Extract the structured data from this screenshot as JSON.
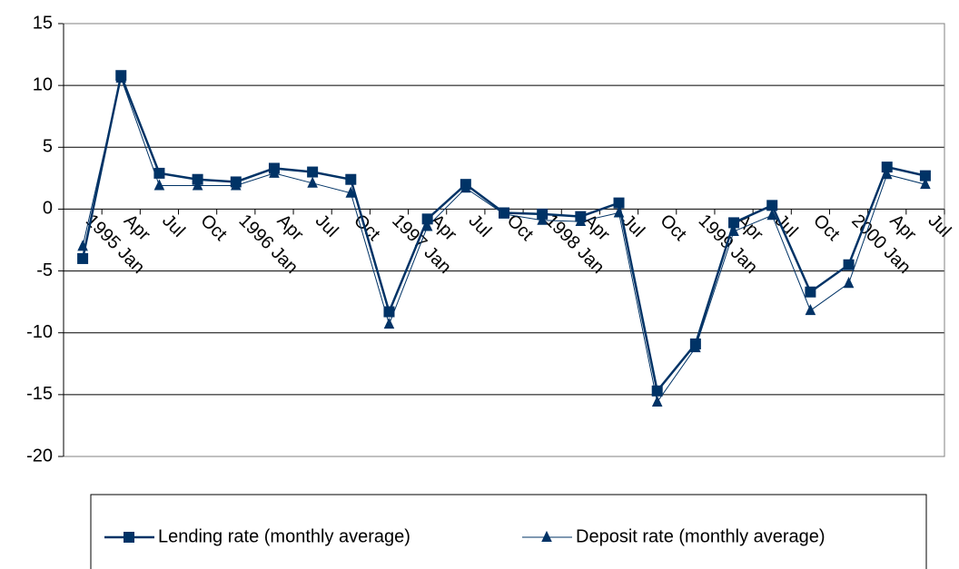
{
  "chart_data": {
    "type": "line",
    "categories": [
      "1995 Jan",
      "Apr",
      "Jul",
      "Oct",
      "1996 Jan",
      "Apr",
      "Jul",
      "Oct",
      "1997 Jan",
      "Apr",
      "Jul",
      "Oct",
      "1998 Jan",
      "Apr",
      "Jul",
      "Oct",
      "1999 Jan",
      "Apr",
      "Jul",
      "Oct",
      "2000 Jan",
      "Apr",
      "Jul"
    ],
    "series": [
      {
        "name": "Lending rate (monthly average)",
        "color": "#003366",
        "marker": "square",
        "values": [
          -4,
          10.8,
          2.9,
          2.4,
          2.2,
          3.3,
          3.0,
          2.4,
          -8.3,
          -0.8,
          2.0,
          -0.3,
          -0.4,
          -0.6,
          0.5,
          -14.7,
          -10.9,
          -1.1,
          0.3,
          -6.7,
          -4.5,
          3.4,
          2.7
        ]
      },
      {
        "name": "Deposit rate (monthly average)",
        "color": "#003366",
        "marker": "triangle",
        "values": [
          -3,
          10.6,
          1.9,
          1.9,
          1.9,
          2.9,
          2.1,
          1.3,
          -9.3,
          -1.4,
          1.7,
          -0.4,
          -0.9,
          -1.0,
          -0.3,
          -15.6,
          -11.2,
          -1.8,
          -0.5,
          -8.2,
          -6.0,
          2.8,
          2.0
        ]
      }
    ],
    "ylim": [
      -20,
      15
    ],
    "yticks": [
      -20,
      -15,
      -10,
      -5,
      0,
      5,
      10,
      15
    ],
    "grid": true,
    "legend": "bottom"
  }
}
